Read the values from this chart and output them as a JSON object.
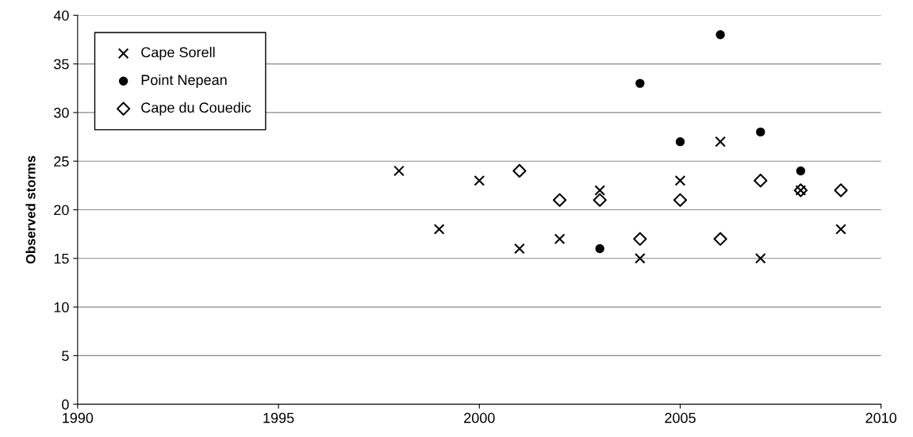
{
  "chart_data": {
    "type": "scatter",
    "ylabel": "Observed storms",
    "xlim": [
      1990,
      2010
    ],
    "xticks": [
      1990,
      1995,
      2000,
      2005,
      2010
    ],
    "ylim": [
      0,
      40
    ],
    "yticks": [
      0,
      5,
      10,
      15,
      20,
      25,
      30,
      35,
      40
    ],
    "grid": "y",
    "legend": "top left",
    "series": [
      {
        "name": "Cape Sorell",
        "color": "#000000",
        "marker": "cross",
        "x": [
          1998,
          1999,
          2000,
          2001,
          2002,
          2003,
          2004,
          2005,
          2006,
          2007,
          2008,
          2009
        ],
        "values": [
          24,
          18,
          23,
          16,
          17,
          22,
          15,
          23,
          27,
          15,
          22,
          18
        ]
      },
      {
        "name": "Point Nepean",
        "color": "#000000",
        "marker": "circle",
        "x": [
          2003,
          2004,
          2005,
          2006,
          2007,
          2008
        ],
        "values": [
          16,
          33,
          27,
          38,
          28,
          24
        ]
      },
      {
        "name": "Cape du Couedic",
        "color": "#000000",
        "marker": "diamond",
        "x": [
          2001,
          2002,
          2003,
          2004,
          2005,
          2006,
          2007,
          2008,
          2009
        ],
        "values": [
          24,
          21,
          21,
          17,
          21,
          17,
          23,
          22,
          22
        ]
      }
    ]
  }
}
